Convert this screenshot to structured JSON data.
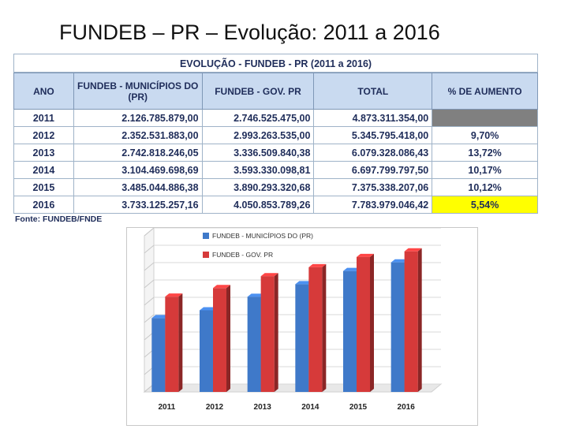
{
  "slide": {
    "title": "FUNDEB – PR – Evolução: 2011 a 2016"
  },
  "table": {
    "caption": "EVOLUÇÃO - FUNDEB - PR (2011 a 2016)",
    "headers": [
      "ANO",
      "FUNDEB - MUNICÍPIOS DO (PR)",
      "FUNDEB - GOV. PR",
      "TOTAL",
      "% DE AUMENTO"
    ],
    "rows": [
      [
        "2011",
        "2.126.785.879,00",
        "2.746.525.475,00",
        "4.873.311.354,00",
        ""
      ],
      [
        "2012",
        "2.352.531.883,00",
        "2.993.263.535,00",
        "5.345.795.418,00",
        "9,70%"
      ],
      [
        "2013",
        "2.742.818.246,05",
        "3.336.509.840,38",
        "6.079.328.086,43",
        "13,72%"
      ],
      [
        "2014",
        "3.104.469.698,69",
        "3.593.330.098,81",
        "6.697.799.797,50",
        "10,17%"
      ],
      [
        "2015",
        "3.485.044.886,38",
        "3.890.293.320,68",
        "7.375.338.207,06",
        "10,12%"
      ],
      [
        "2016",
        "3.733.125.257,16",
        "4.050.853.789,26",
        "7.783.979.046,42",
        "5,54%"
      ]
    ],
    "source": "Fonte: FUNDEB/FNDE",
    "colors": {
      "header_bg": "#c9daf0",
      "grey_cell": "#808080",
      "highlight_cell": "#ffff00",
      "text": "#1f2d5a"
    }
  },
  "chart_data": {
    "type": "bar",
    "categories": [
      "2011",
      "2012",
      "2013",
      "2014",
      "2015",
      "2016"
    ],
    "series": [
      {
        "name": "FUNDEB - MUNICÍPIOS DO (PR)",
        "color": "#3f79c9",
        "values": [
          2126785879.0,
          2352531883.0,
          2742818246.05,
          3104469698.69,
          3485044886.38,
          3733125257.16
        ]
      },
      {
        "name": "FUNDEB - GOV. PR",
        "color": "#d63a3a",
        "values": [
          2746525475.0,
          2993263535.0,
          3336509840.38,
          3593330098.81,
          3890293320.68,
          4050853789.26
        ]
      }
    ],
    "ylim": [
      0,
      4500000000
    ],
    "grid": true,
    "legend": "top-left"
  }
}
